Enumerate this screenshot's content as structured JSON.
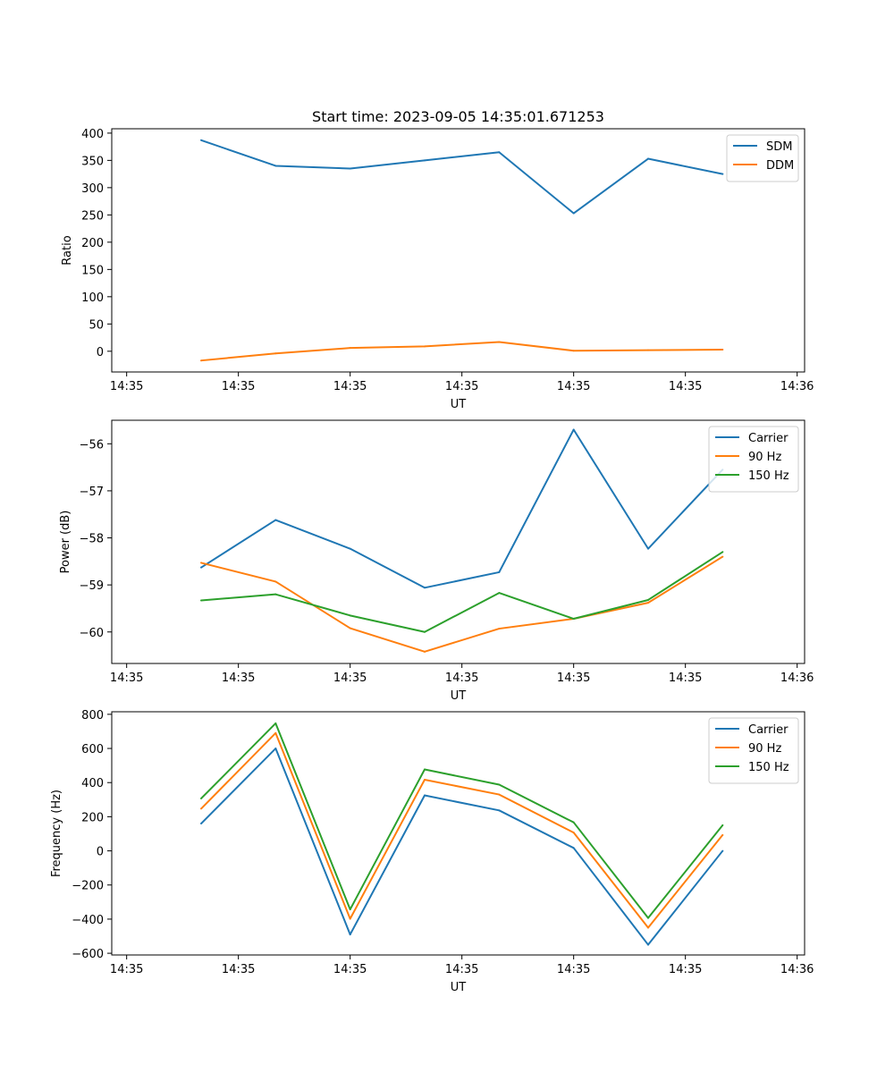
{
  "title": "Start time: 2023-09-05 14:35:01.671253",
  "colors": {
    "c0": "#1f77b4",
    "c1": "#ff7f0e",
    "c2": "#2ca02c"
  },
  "chart_data": [
    {
      "type": "line",
      "title": "Start time: 2023-09-05 14:35:01.671253",
      "xlabel": "UT",
      "ylabel": "Ratio",
      "x_ticks": [
        "14:35",
        "14:35",
        "14:35",
        "14:35",
        "14:35",
        "14:35",
        "14:36"
      ],
      "x_index": [
        1,
        2,
        3,
        4,
        5,
        6,
        7,
        8
      ],
      "xlim": [
        -0.2,
        9.1
      ],
      "ylim": [
        -38,
        408
      ],
      "y_ticks": [
        0,
        50,
        100,
        150,
        200,
        250,
        300,
        350,
        400
      ],
      "legend": "top-right",
      "series": [
        {
          "name": "SDM",
          "values": [
            387,
            340,
            335,
            350,
            365,
            253,
            353,
            325
          ]
        },
        {
          "name": "DDM",
          "values": [
            -17,
            -4,
            6,
            9,
            17,
            1,
            2,
            3
          ]
        }
      ]
    },
    {
      "type": "line",
      "xlabel": "UT",
      "ylabel": "Power (dB)",
      "x_ticks": [
        "14:35",
        "14:35",
        "14:35",
        "14:35",
        "14:35",
        "14:35",
        "14:36"
      ],
      "x_index": [
        1,
        2,
        3,
        4,
        5,
        6,
        7,
        8
      ],
      "xlim": [
        -0.2,
        9.1
      ],
      "ylim": [
        -60.67,
        -55.5
      ],
      "y_ticks": [
        -56,
        -57,
        -58,
        -59,
        -60
      ],
      "legend": "top-right",
      "series": [
        {
          "name": "Carrier",
          "values": [
            -58.63,
            -57.62,
            -58.23,
            -59.06,
            -58.73,
            -55.7,
            -58.23,
            -56.55
          ]
        },
        {
          "name": "90 Hz",
          "values": [
            -58.53,
            -58.93,
            -59.92,
            -60.42,
            -59.93,
            -59.72,
            -59.38,
            -58.4
          ]
        },
        {
          "name": "150 Hz",
          "values": [
            -59.33,
            -59.2,
            -59.65,
            -60.0,
            -59.17,
            -59.72,
            -59.32,
            -58.3
          ]
        }
      ]
    },
    {
      "type": "line",
      "xlabel": "UT",
      "ylabel": "Frequency (Hz)",
      "x_ticks": [
        "14:35",
        "14:35",
        "14:35",
        "14:35",
        "14:35",
        "14:35",
        "14:36"
      ],
      "x_index": [
        1,
        2,
        3,
        4,
        5,
        6,
        7,
        8
      ],
      "xlim": [
        -0.2,
        9.1
      ],
      "ylim": [
        -610,
        815
      ],
      "y_ticks": [
        800,
        600,
        400,
        200,
        0,
        -200,
        -400,
        -600
      ],
      "legend": "top-right",
      "series": [
        {
          "name": "Carrier",
          "values": [
            160,
            600,
            -490,
            325,
            237,
            17,
            -550,
            0
          ]
        },
        {
          "name": "90 Hz",
          "values": [
            247,
            690,
            -398,
            417,
            330,
            107,
            -450,
            93
          ]
        },
        {
          "name": "150 Hz",
          "values": [
            307,
            747,
            -343,
            477,
            388,
            167,
            -393,
            150
          ]
        }
      ]
    }
  ]
}
